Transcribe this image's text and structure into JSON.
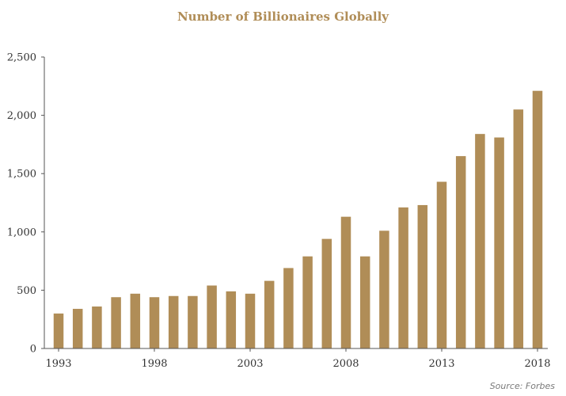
{
  "chart_data": {
    "type": "bar",
    "title": "Number of Billionaires Globally",
    "xlabel": "",
    "ylabel": "",
    "categories": [
      "1993",
      "1994",
      "1995",
      "1996",
      "1997",
      "1998",
      "1999",
      "2000",
      "2001",
      "2002",
      "2003",
      "2004",
      "2005",
      "2006",
      "2007",
      "2008",
      "2009",
      "2010",
      "2011",
      "2012",
      "2013",
      "2014",
      "2015",
      "2016",
      "2017",
      "2018"
    ],
    "values": [
      300,
      340,
      360,
      440,
      470,
      440,
      450,
      450,
      540,
      490,
      470,
      580,
      690,
      790,
      940,
      1130,
      790,
      1010,
      1210,
      1230,
      1430,
      1650,
      1840,
      1810,
      2050,
      2210
    ],
    "x_tick_labels": [
      "1993",
      "1998",
      "2003",
      "2008",
      "2013",
      "2018"
    ],
    "y_ticks": [
      0,
      500,
      1000,
      1500,
      2000,
      2500
    ],
    "y_tick_labels": [
      "0",
      "500",
      "1,000",
      "1,500",
      "2,000",
      "2,500"
    ],
    "ylim": [
      0,
      2500
    ],
    "grid": false,
    "legend": "none",
    "bar_color": "#b08d57",
    "axis_color": "#555555",
    "title_color": "#b08d57"
  },
  "source_note": "Source: Forbes"
}
